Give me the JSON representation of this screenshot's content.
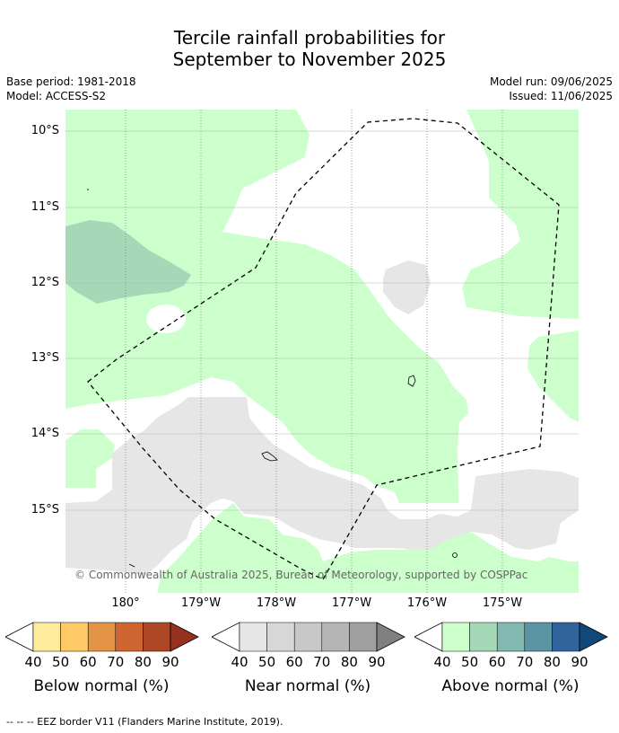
{
  "title_line1": "Tercile rainfall probabilities for",
  "title_line2": "September to November 2025",
  "base_period": "Base period: 1981-2018",
  "model": "Model: ACCESS-S2",
  "model_run": "Model run: 09/06/2025",
  "issued": "Issued: 11/06/2025",
  "lat_labels": [
    "10°S",
    "11°S",
    "12°S",
    "13°S",
    "14°S",
    "15°S"
  ],
  "lon_labels": [
    "180°",
    "179°W",
    "178°W",
    "177°W",
    "176°W",
    "175°W"
  ],
  "copyright": "© Commonwealth of Australia 2025, Bureau of Meteorology, supported by COSPPac",
  "colorbars": [
    {
      "title": "Below normal (%)",
      "ticks": [
        "40",
        "50",
        "60",
        "70",
        "80",
        "90"
      ],
      "colors": [
        "#ffffff",
        "#ffeb9c",
        "#ffc966",
        "#e39545",
        "#cf6631",
        "#ad4726",
        "#963120"
      ]
    },
    {
      "title": "Near normal (%)",
      "ticks": [
        "40",
        "50",
        "60",
        "70",
        "80",
        "90"
      ],
      "colors": [
        "#ffffff",
        "#e6e6e6",
        "#d7d7d7",
        "#c8c8c8",
        "#b5b5b5",
        "#a0a0a0",
        "#808080"
      ]
    },
    {
      "title": "Above normal (%)",
      "ticks": [
        "40",
        "50",
        "60",
        "70",
        "80",
        "90"
      ],
      "colors": [
        "#ffffff",
        "#ccffcc",
        "#a5d8b7",
        "#82b9b1",
        "#5b94a2",
        "#30649a",
        "#104879"
      ]
    }
  ],
  "footer": "--  --  -- EEZ border V11 (Flanders Marine Institute, 2019)."
}
